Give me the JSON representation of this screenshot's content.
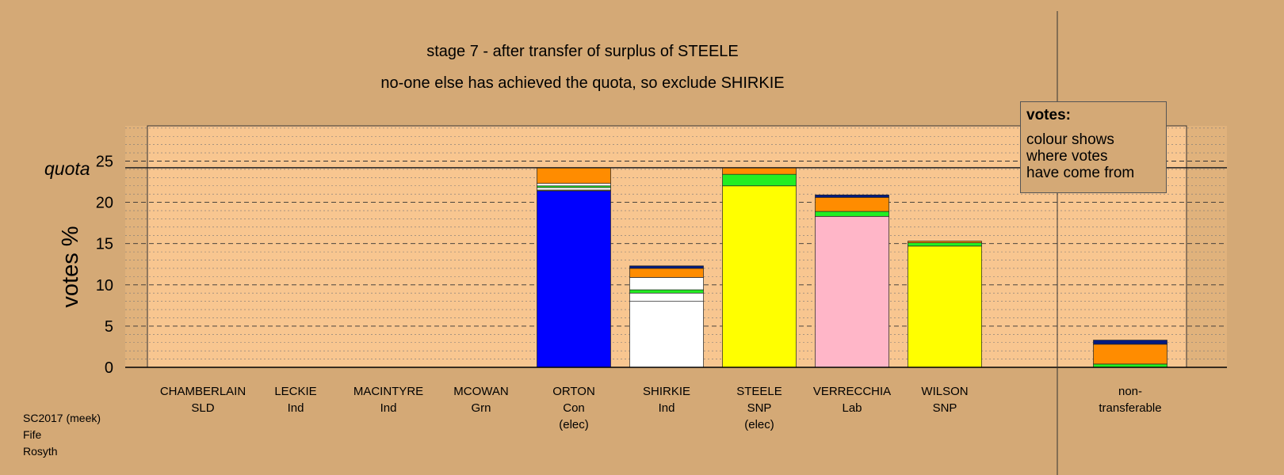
{
  "header": {
    "title": "stage 7 - after transfer of surplus of STEELE",
    "subtitle": "no-one else has achieved the quota, so exclude SHIRKIE"
  },
  "source": [
    "SC2017 (meek)",
    "Fife",
    "Rosyth"
  ],
  "legend": {
    "title": "votes:",
    "lines": [
      "colour shows",
      "where votes",
      "have come from"
    ]
  },
  "colors": {
    "background": "#d4a976",
    "plot_area": "#f8c690",
    "Con": "#0000ff",
    "Ind": "#ffffff",
    "SNP": "#ffff00",
    "Lab": "#ffb6c8",
    "Grn": "#22ee22",
    "SLD": "#ff8c00",
    "other": "#001a80"
  },
  "chart_data": {
    "type": "bar",
    "stacked": true,
    "ylabel": "votes %",
    "ylim": [
      0,
      29
    ],
    "yticks": [
      0,
      5,
      10,
      15,
      20,
      25
    ],
    "quota": 24.2,
    "quota_label": "quota",
    "grid": true,
    "categories": [
      {
        "name": "CHAMBERLAIN",
        "party": "SLD",
        "note": ""
      },
      {
        "name": "LECKIE",
        "party": "Ind",
        "note": ""
      },
      {
        "name": "MACINTYRE",
        "party": "Ind",
        "note": ""
      },
      {
        "name": "MCOWAN",
        "party": "Grn",
        "note": ""
      },
      {
        "name": "ORTON",
        "party": "Con",
        "note": "(elec)"
      },
      {
        "name": "SHIRKIE",
        "party": "Ind",
        "note": ""
      },
      {
        "name": "STEELE",
        "party": "SNP",
        "note": "(elec)"
      },
      {
        "name": "VERRECCHIA",
        "party": "Lab",
        "note": ""
      },
      {
        "name": "WILSON",
        "party": "SNP",
        "note": ""
      },
      {
        "name": "non-",
        "party": "transferable",
        "note": ""
      }
    ],
    "segments": [
      [],
      [],
      [],
      [],
      [
        {
          "src": "Con",
          "v": 21.4
        },
        {
          "src": "SNP",
          "v": 0.1
        },
        {
          "src": "Ind",
          "v": 0.3
        },
        {
          "src": "Grn",
          "v": 0.2
        },
        {
          "src": "Ind",
          "v": 0.3
        },
        {
          "src": "SLD",
          "v": 1.9
        }
      ],
      [
        {
          "src": "Ind",
          "v": 8.0
        },
        {
          "src": "Ind",
          "v": 1.0
        },
        {
          "src": "Grn",
          "v": 0.4
        },
        {
          "src": "Ind",
          "v": 1.5
        },
        {
          "src": "SLD",
          "v": 1.1
        },
        {
          "src": "other",
          "v": 0.3
        }
      ],
      [
        {
          "src": "SNP",
          "v": 22.0
        },
        {
          "src": "Grn",
          "v": 1.4
        },
        {
          "src": "SLD",
          "v": 0.8
        }
      ],
      [
        {
          "src": "Lab",
          "v": 18.3
        },
        {
          "src": "Grn",
          "v": 0.6
        },
        {
          "src": "SLD",
          "v": 1.7
        },
        {
          "src": "other",
          "v": 0.3
        }
      ],
      [
        {
          "src": "SNP",
          "v": 14.7
        },
        {
          "src": "Grn",
          "v": 0.4
        },
        {
          "src": "SLD",
          "v": 0.2
        }
      ],
      [
        {
          "src": "Grn",
          "v": 0.4
        },
        {
          "src": "SLD",
          "v": 2.4
        },
        {
          "src": "other",
          "v": 0.5
        }
      ]
    ]
  }
}
